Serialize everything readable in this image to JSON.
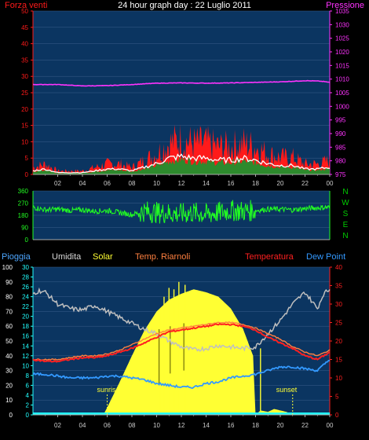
{
  "header": {
    "left_label": "Forza venti",
    "title": "24 hour graph day : 22 Luglio 2011",
    "right_label": "Pressione"
  },
  "colors": {
    "background": "#000000",
    "plot_bg": "#0b3561",
    "wind_red": "#ff1a1a",
    "pressure_magenta": "#ff33ff",
    "gust_green": "#2d8a2d",
    "gust_white": "#ffffff",
    "direction_green": "#22ff22",
    "label_green": "#00cc00",
    "humidity_gray": "#bfbfbf",
    "solar_yellow": "#ffff33",
    "temp_red": "#ff2020",
    "temp_orange": "#ff8040",
    "dewpoint_blue": "#3399ff",
    "rain_cyan": "#22ffff",
    "rain_label_blue": "#4da6ff"
  },
  "wind_axis": {
    "left_ticks": [
      "0",
      "5",
      "10",
      "15",
      "20",
      "25",
      "30",
      "35",
      "40",
      "45",
      "50"
    ],
    "right_ticks": [
      "975",
      "980",
      "985",
      "990",
      "995",
      "1000",
      "1005",
      "1010",
      "1015",
      "1020",
      "1025",
      "1030",
      "1035"
    ]
  },
  "direction_axis": {
    "left_ticks": [
      "0",
      "90",
      "180",
      "270",
      "360"
    ],
    "compass_letters": [
      "N",
      "W",
      "S",
      "E",
      "N"
    ]
  },
  "time_ticks": [
    "02",
    "04",
    "06",
    "08",
    "10",
    "12",
    "14",
    "16",
    "18",
    "20",
    "22",
    "00"
  ],
  "legend": {
    "pioggia": "Pioggia",
    "umidita": "Umidita",
    "solar": "Solar",
    "temp_riarnoli": "Temp. Riarnoli",
    "temperatura": "Temperatura",
    "dew_point": "Dew Point"
  },
  "bottom_axis": {
    "left_ticks_humidity": [
      "0",
      "10",
      "20",
      "30",
      "40",
      "50",
      "60",
      "70",
      "80",
      "90",
      "100"
    ],
    "left_ticks_rain": [
      "0",
      "2",
      "4",
      "6",
      "8",
      "10",
      "12",
      "14",
      "16",
      "18",
      "20",
      "22",
      "24",
      "26",
      "28",
      "30"
    ],
    "right_ticks_temp": [
      "0",
      "5",
      "10",
      "15",
      "20",
      "25",
      "30",
      "35",
      "40"
    ]
  },
  "annotations": {
    "sunrise": "sunrise",
    "sunset": "sunset"
  },
  "chart_data": [
    {
      "type": "line",
      "title": "24 hour graph day : 22 Luglio 2011",
      "series": [
        {
          "name": "Forza venti",
          "x": [
            0,
            1,
            2,
            3,
            4,
            5,
            6,
            7,
            8,
            9,
            10,
            11,
            12,
            13,
            14,
            15,
            16,
            17,
            18,
            19,
            20,
            21,
            22,
            23,
            24
          ],
          "values": [
            2,
            3,
            1,
            1,
            1,
            2,
            3,
            3,
            2,
            4,
            6,
            9,
            10,
            9,
            9,
            8,
            8,
            9,
            8,
            6,
            5,
            5,
            3,
            3,
            4
          ]
        },
        {
          "name": "Pressione",
          "x": [
            0,
            2,
            4,
            6,
            8,
            10,
            12,
            14,
            16,
            18,
            20,
            22,
            23,
            23.5,
            24
          ],
          "values": [
            1008,
            1008,
            1007.5,
            1007.6,
            1008,
            1008.5,
            1008.6,
            1008.5,
            1008.6,
            1008.8,
            1009,
            1009.4,
            1009.3,
            1009.1,
            1008.8
          ]
        }
      ],
      "ylim": [
        0,
        50
      ],
      "y2lim": [
        975,
        1035
      ]
    },
    {
      "type": "line",
      "series": [
        {
          "name": "direction",
          "x": [
            0,
            1,
            2,
            3,
            4,
            5,
            6,
            7,
            8,
            9,
            10,
            11,
            12,
            13,
            14,
            15,
            16,
            17,
            18,
            19,
            20,
            21,
            22,
            23,
            24
          ],
          "values": [
            240,
            220,
            225,
            215,
            220,
            210,
            215,
            200,
            185,
            210,
            200,
            195,
            190,
            200,
            185,
            200,
            215,
            210,
            215,
            225,
            225,
            220,
            230,
            235,
            240
          ]
        }
      ],
      "ylim": [
        0,
        360
      ]
    },
    {
      "type": "line",
      "series": [
        {
          "name": "Umidita",
          "x": [
            0,
            0.5,
            1,
            2,
            3,
            4,
            5,
            6,
            7,
            8,
            9,
            10,
            11,
            12,
            13,
            14,
            15,
            16,
            17,
            18,
            19,
            20,
            21,
            22,
            23,
            23.5,
            24
          ],
          "values": [
            82,
            84,
            83,
            75,
            72,
            71,
            74,
            70,
            66,
            62,
            58,
            55,
            50,
            46,
            44,
            45,
            47,
            46,
            45,
            46,
            55,
            64,
            75,
            83,
            72,
            82,
            85
          ]
        },
        {
          "name": "Temperatura",
          "x": [
            0,
            1,
            2,
            3,
            4,
            5,
            6,
            7,
            8,
            9,
            10,
            11,
            12,
            13,
            14,
            15,
            16,
            17,
            18,
            19,
            20,
            21,
            22,
            23,
            24
          ],
          "values": [
            15,
            14.5,
            14.5,
            15,
            15.5,
            15.5,
            16,
            17,
            18,
            19.5,
            21,
            22.5,
            23,
            23.5,
            24,
            24.5,
            24.5,
            24,
            23,
            21,
            19.5,
            18,
            16,
            15,
            17
          ]
        },
        {
          "name": "Temp. Riarnoli",
          "x": [
            0,
            1,
            2,
            3,
            4,
            5,
            6,
            7,
            8,
            9,
            10,
            11,
            12,
            13,
            14,
            15,
            16,
            17,
            18,
            19,
            20,
            21,
            22,
            23,
            24
          ],
          "values": [
            15,
            15,
            15,
            15.5,
            16,
            16,
            16.5,
            17.5,
            19,
            20.5,
            22,
            23,
            23.5,
            24,
            24.5,
            25,
            25,
            24.5,
            23.5,
            22,
            20.5,
            18.5,
            17,
            16,
            17.5
          ]
        },
        {
          "name": "Dew Point",
          "x": [
            0,
            1,
            2,
            3,
            4,
            5,
            6,
            7,
            8,
            9,
            10,
            11,
            12,
            13,
            14,
            15,
            16,
            17,
            18,
            19,
            20,
            21,
            22,
            23,
            24
          ],
          "values": [
            11,
            11,
            10.5,
            10,
            10,
            10,
            10.5,
            10.5,
            10,
            9.5,
            8.5,
            8,
            7.5,
            7.5,
            8.5,
            9,
            10,
            10.5,
            11,
            12,
            13,
            13,
            12.5,
            12,
            15
          ]
        },
        {
          "name": "Solar",
          "x": [
            0,
            5.7,
            6,
            7,
            8,
            9,
            10,
            11,
            12,
            13,
            14,
            15,
            16,
            17,
            17.8,
            18,
            18.4,
            19,
            19.5,
            20,
            20.5,
            21,
            24
          ],
          "values": [
            0,
            0,
            5,
            22,
            40,
            57,
            70,
            78,
            82,
            85,
            83,
            80,
            72,
            58,
            40,
            0,
            3,
            2,
            4,
            3,
            2,
            0,
            0
          ]
        },
        {
          "name": "Pioggia",
          "x": [
            0,
            24
          ],
          "values": [
            0,
            0
          ]
        }
      ],
      "ylim": [
        0,
        100
      ],
      "y2lim": [
        0,
        40
      ]
    }
  ]
}
